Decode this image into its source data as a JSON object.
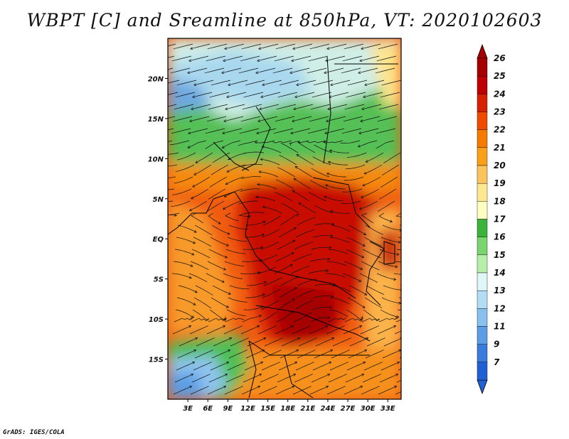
{
  "title": "WBPT [C] and Sreamline at 850hPa, VT: 2020102603",
  "credit": "GrADS: IGES/COLA",
  "map": {
    "lon_range": [
      0,
      35
    ],
    "lat_range": [
      -20,
      25
    ],
    "lon_ticks": [
      {
        "value": 3,
        "label": "3E"
      },
      {
        "value": 6,
        "label": "6E"
      },
      {
        "value": 9,
        "label": "9E"
      },
      {
        "value": 12,
        "label": "12E"
      },
      {
        "value": 15,
        "label": "15E"
      },
      {
        "value": 18,
        "label": "18E"
      },
      {
        "value": 21,
        "label": "21E"
      },
      {
        "value": 24,
        "label": "24E"
      },
      {
        "value": 27,
        "label": "27E"
      },
      {
        "value": 30,
        "label": "30E"
      },
      {
        "value": 33,
        "label": "33E"
      }
    ],
    "lat_ticks": [
      {
        "value": 20,
        "label": "20N"
      },
      {
        "value": 15,
        "label": "15N"
      },
      {
        "value": 10,
        "label": "10N"
      },
      {
        "value": 5,
        "label": "5N"
      },
      {
        "value": 0,
        "label": "EQ"
      },
      {
        "value": -5,
        "label": "5S"
      },
      {
        "value": -10,
        "label": "10S"
      },
      {
        "value": -15,
        "label": "15S"
      }
    ]
  },
  "colorbar": {
    "levels": [
      {
        "label": "26",
        "color": "#a50000"
      },
      {
        "label": "25",
        "color": "#c00000"
      },
      {
        "label": "24",
        "color": "#d62000"
      },
      {
        "label": "23",
        "color": "#ef4a00"
      },
      {
        "label": "22",
        "color": "#f57a00"
      },
      {
        "label": "21",
        "color": "#f9a01a"
      },
      {
        "label": "20",
        "color": "#fbc35c"
      },
      {
        "label": "19",
        "color": "#fde891"
      },
      {
        "label": "18",
        "color": "#fefec0"
      },
      {
        "label": "17",
        "color": "#3cb43c"
      },
      {
        "label": "16",
        "color": "#79d66e"
      },
      {
        "label": "15",
        "color": "#b6eeaa"
      },
      {
        "label": "14",
        "color": "#dff7f7"
      },
      {
        "label": "13",
        "color": "#b4dcf5"
      },
      {
        "label": "12",
        "color": "#88c0ee"
      },
      {
        "label": "11",
        "color": "#5c9ee6"
      },
      {
        "label": "9",
        "color": "#3a7cdc"
      },
      {
        "label": "7",
        "color": "#2060d2"
      }
    ],
    "top_color": "#a50000",
    "bottom_color": "#2060d2"
  }
}
